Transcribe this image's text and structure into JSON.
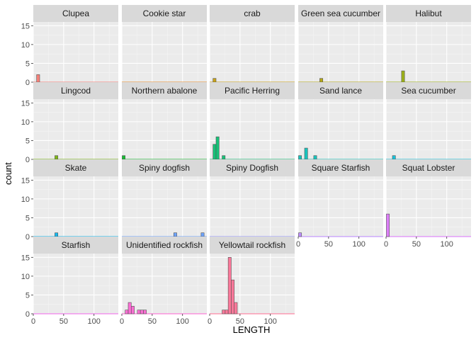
{
  "chart_data": {
    "type": "bar",
    "subtype": "faceted-histogram",
    "xlabel": "LENGTH",
    "ylabel": "count",
    "xlim": [
      0,
      140
    ],
    "ylim": [
      0,
      16
    ],
    "x_ticks": [
      "0",
      "50",
      "100"
    ],
    "y_ticks": [
      "0",
      "5",
      "10",
      "15"
    ],
    "grid": true,
    "legend": "none",
    "facets": [
      {
        "name": "Clupea",
        "color": "#F8766D",
        "values": [
          {
            "x": 8,
            "count": 2
          }
        ]
      },
      {
        "name": "Cookie star",
        "color": "#E7861B",
        "values": []
      },
      {
        "name": "crab",
        "color": "#C49A00",
        "values": [
          {
            "x": 8,
            "count": 1
          }
        ]
      },
      {
        "name": "Green sea cucumber",
        "color": "#AFA100",
        "values": [
          {
            "x": 38,
            "count": 1
          }
        ]
      },
      {
        "name": "Halibut",
        "color": "#94AA00",
        "values": [
          {
            "x": 28,
            "count": 3
          }
        ]
      },
      {
        "name": "Lingcod",
        "color": "#72B000",
        "values": [
          {
            "x": 38,
            "count": 1
          }
        ]
      },
      {
        "name": "Northern abalone",
        "color": "#00B81F",
        "values": [
          {
            "x": 3,
            "count": 1
          }
        ]
      },
      {
        "name": "Pacific Herring",
        "color": "#00BE6C",
        "values": [
          {
            "x": 8,
            "count": 4
          },
          {
            "x": 13,
            "count": 6
          },
          {
            "x": 23,
            "count": 1
          }
        ]
      },
      {
        "name": "Sand lance",
        "color": "#00C0B8",
        "values": [
          {
            "x": 3,
            "count": 1
          },
          {
            "x": 13,
            "count": 3
          },
          {
            "x": 28,
            "count": 1
          }
        ]
      },
      {
        "name": "Sea cucumber",
        "color": "#00BCD8",
        "values": [
          {
            "x": 13,
            "count": 1
          }
        ]
      },
      {
        "name": "Skate",
        "color": "#00B4EF",
        "values": [
          {
            "x": 38,
            "count": 1
          }
        ]
      },
      {
        "name": "Spiny dogfish",
        "color": "#619CFF",
        "values": [
          {
            "x": 88,
            "count": 1
          },
          {
            "x": 133,
            "count": 1
          }
        ]
      },
      {
        "name": "Spiny Dogfish",
        "color": "#8F91FF",
        "values": []
      },
      {
        "name": "Square Starfish",
        "color": "#B983FF",
        "values": [
          {
            "x": 3,
            "count": 1
          }
        ]
      },
      {
        "name": "Squat Lobster",
        "color": "#DB72FB",
        "values": [
          {
            "x": 3,
            "count": 6
          }
        ]
      },
      {
        "name": "Starfish",
        "color": "#F066EA",
        "values": []
      },
      {
        "name": "Unidentified rockfish",
        "color": "#FD61D1",
        "values": [
          {
            "x": 8,
            "count": 1
          },
          {
            "x": 13,
            "count": 3
          },
          {
            "x": 18,
            "count": 2
          },
          {
            "x": 28,
            "count": 1
          },
          {
            "x": 33,
            "count": 1
          },
          {
            "x": 38,
            "count": 1
          }
        ]
      },
      {
        "name": "Yellowtail rockfish",
        "color": "#FF6C91",
        "values": [
          {
            "x": 23,
            "count": 1
          },
          {
            "x": 28,
            "count": 1
          },
          {
            "x": 33,
            "count": 15
          },
          {
            "x": 38,
            "count": 9
          },
          {
            "x": 43,
            "count": 3
          }
        ]
      }
    ]
  }
}
